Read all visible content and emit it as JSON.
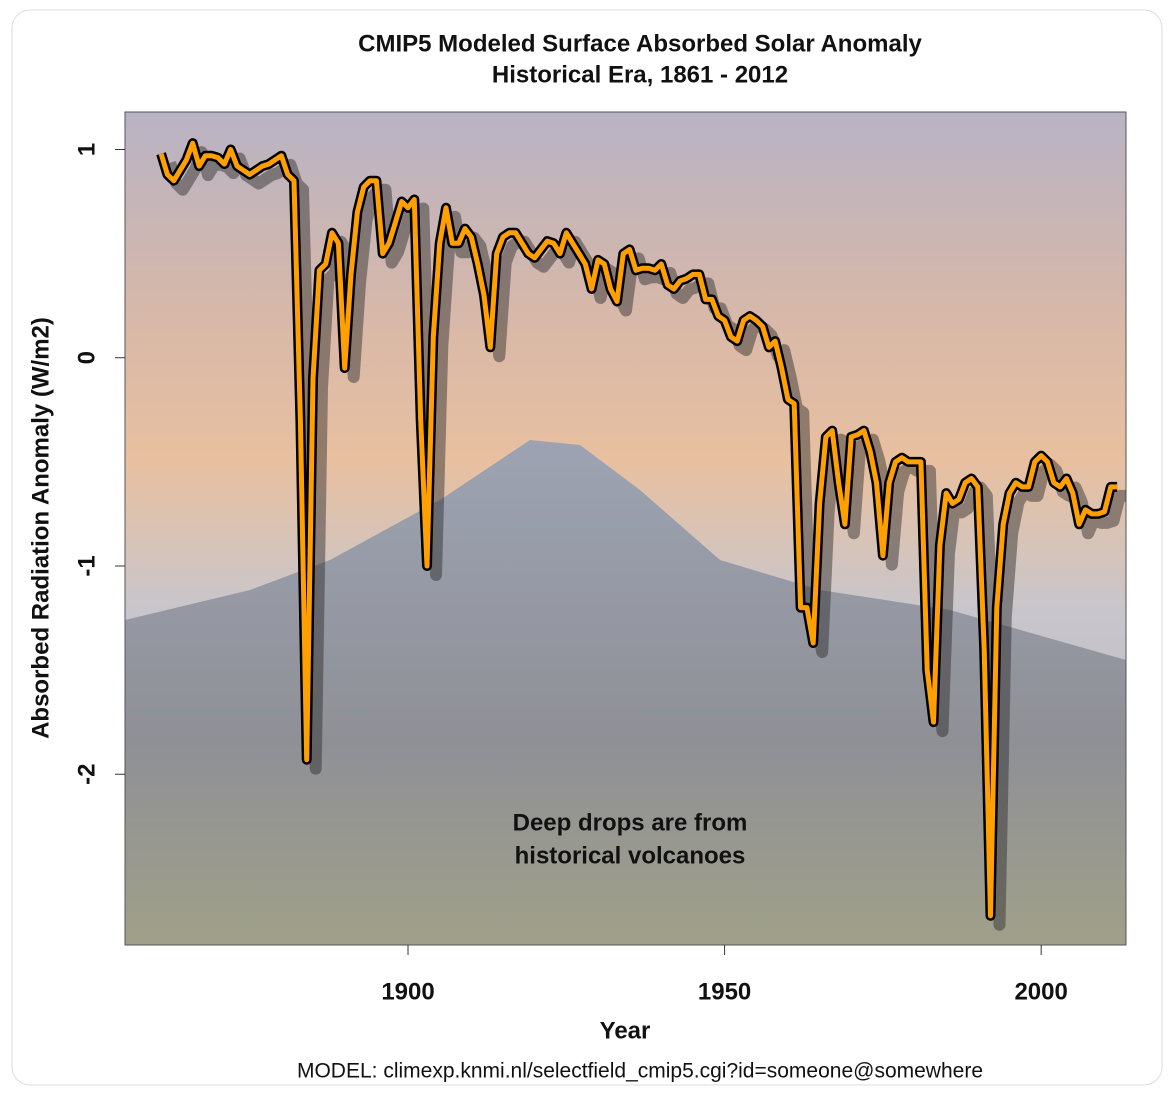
{
  "chart_data": {
    "type": "line",
    "title": "CMIP5 Modeled Surface Absorbed Solar Anomaly",
    "subtitle": "Historical Era, 1861 - 2012",
    "x_label": "Year",
    "y_label": "Absorbed Radiation Anomaly (W/m2)",
    "annotation": [
      "Deep drops are from",
      "historical volcanoes"
    ],
    "source": "MODEL: climexp.knmi.nl/selectfield_cmip5.cgi?id=someone@somewhere",
    "x": [
      1861,
      1862,
      1863,
      1864,
      1865,
      1866,
      1867,
      1868,
      1869,
      1870,
      1871,
      1872,
      1873,
      1874,
      1875,
      1876,
      1877,
      1878,
      1879,
      1880,
      1881,
      1882,
      1883,
      1884,
      1885,
      1886,
      1887,
      1888,
      1889,
      1890,
      1891,
      1892,
      1893,
      1894,
      1895,
      1896,
      1897,
      1898,
      1899,
      1900,
      1901,
      1902,
      1903,
      1904,
      1905,
      1906,
      1907,
      1908,
      1909,
      1910,
      1911,
      1912,
      1913,
      1914,
      1915,
      1916,
      1917,
      1918,
      1919,
      1920,
      1921,
      1922,
      1923,
      1924,
      1925,
      1926,
      1927,
      1928,
      1929,
      1930,
      1931,
      1932,
      1933,
      1934,
      1935,
      1936,
      1937,
      1938,
      1939,
      1940,
      1941,
      1942,
      1943,
      1944,
      1945,
      1946,
      1947,
      1948,
      1949,
      1950,
      1951,
      1952,
      1953,
      1954,
      1955,
      1956,
      1957,
      1958,
      1959,
      1960,
      1961,
      1962,
      1963,
      1964,
      1965,
      1966,
      1967,
      1968,
      1969,
      1970,
      1971,
      1972,
      1973,
      1974,
      1975,
      1976,
      1977,
      1978,
      1979,
      1980,
      1981,
      1982,
      1983,
      1984,
      1985,
      1986,
      1987,
      1988,
      1989,
      1990,
      1991,
      1992,
      1993,
      1994,
      1995,
      1996,
      1997,
      1998,
      1999,
      2000,
      2001,
      2002,
      2003,
      2004,
      2005,
      2006,
      2007,
      2008,
      2009,
      2010,
      2011,
      2012
    ],
    "series": [
      {
        "color": "#ffa000",
        "values": [
          0.98,
          0.88,
          0.85,
          0.9,
          0.95,
          1.03,
          0.92,
          0.97,
          0.97,
          0.96,
          0.93,
          1.0,
          0.92,
          0.9,
          0.88,
          0.9,
          0.92,
          0.93,
          0.95,
          0.97,
          0.88,
          0.85,
          -0.3,
          -1.93,
          -0.1,
          0.42,
          0.45,
          0.6,
          0.55,
          -0.05,
          0.4,
          0.7,
          0.82,
          0.85,
          0.85,
          0.5,
          0.55,
          0.65,
          0.75,
          0.72,
          0.76,
          -0.3,
          -1.0,
          0.1,
          0.55,
          0.72,
          0.55,
          0.55,
          0.62,
          0.58,
          0.45,
          0.3,
          0.05,
          0.5,
          0.58,
          0.6,
          0.6,
          0.55,
          0.5,
          0.48,
          0.52,
          0.56,
          0.55,
          0.5,
          0.6,
          0.55,
          0.5,
          0.45,
          0.33,
          0.47,
          0.45,
          0.33,
          0.27,
          0.5,
          0.52,
          0.42,
          0.43,
          0.43,
          0.42,
          0.45,
          0.35,
          0.33,
          0.37,
          0.38,
          0.4,
          0.4,
          0.28,
          0.28,
          0.2,
          0.18,
          0.1,
          0.08,
          0.18,
          0.2,
          0.18,
          0.15,
          0.05,
          0.08,
          -0.05,
          -0.2,
          -0.22,
          -1.2,
          -1.2,
          -1.37,
          -0.7,
          -0.38,
          -0.35,
          -0.6,
          -0.8,
          -0.38,
          -0.37,
          -0.35,
          -0.45,
          -0.6,
          -0.95,
          -0.6,
          -0.5,
          -0.48,
          -0.5,
          -0.5,
          -0.5,
          -1.5,
          -1.75,
          -0.9,
          -0.65,
          -0.7,
          -0.68,
          -0.6,
          -0.58,
          -0.62,
          -1.4,
          -2.68,
          -1.2,
          -0.8,
          -0.65,
          -0.6,
          -0.62,
          -0.62,
          -0.5,
          -0.47,
          -0.5,
          -0.6,
          -0.62,
          -0.58,
          -0.65,
          -0.8,
          -0.73,
          -0.75,
          -0.75,
          -0.74,
          -0.62,
          -0.62
        ]
      }
    ],
    "xlim": [
      1855.3,
      2013.4
    ],
    "ylim": [
      -2.82,
      1.18
    ],
    "xticks": [
      1900,
      1950,
      2000
    ],
    "yticks": [
      -2,
      -1,
      0,
      1
    ]
  }
}
